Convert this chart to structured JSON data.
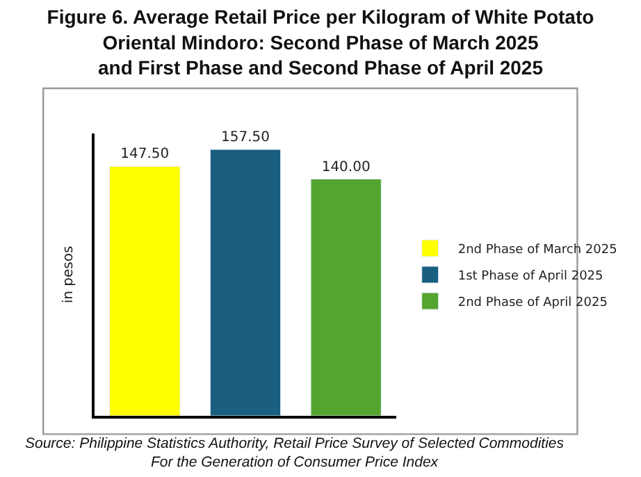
{
  "chart_data": {
    "type": "bar",
    "title": "Figure 6. Average Retail Price per Kilogram of White Potato\nOriental Mindoro: Second Phase of March 2025\nand First Phase and Second Phase of April 2025",
    "ylabel": "in pesos",
    "categories": [
      null
    ],
    "series": [
      {
        "name": "2nd Phase of March 2025",
        "color": "#ffff00",
        "values": [
          147.5
        ],
        "value_labels": [
          "147.50"
        ]
      },
      {
        "name": "1st Phase of April 2025",
        "color": "#1a5e80",
        "values": [
          157.5
        ],
        "value_labels": [
          "157.50"
        ]
      },
      {
        "name": "2nd Phase of April 2025",
        "color": "#53a52f",
        "values": [
          140.0
        ],
        "value_labels": [
          "140.00"
        ]
      }
    ],
    "tick_labels": false,
    "legend": "right",
    "annotations": [
      "Source: Philippine Statistics Authority, Retail Price Survey of Selected Commodities\nFor the Generation of Consumer Price Index"
    ]
  }
}
